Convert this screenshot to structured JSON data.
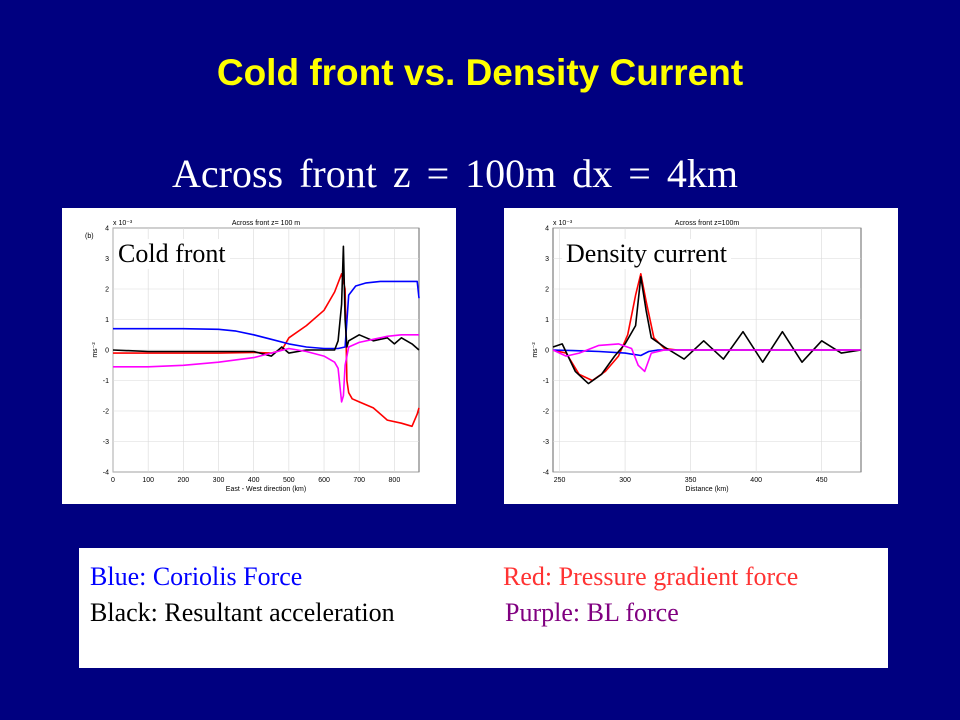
{
  "slide": {
    "title": "Cold front vs. Density Current",
    "subtitle": "Across front z = 100m    dx = 4km"
  },
  "legend": {
    "blue": "Blue: Coriolis Force",
    "red": "Red: Pressure gradient force",
    "black": "Black: Resultant acceleration",
    "purple": "Purple: BL force"
  },
  "colors": {
    "background": "#000080",
    "title": "#ffff00",
    "coriolis": "#0000ff",
    "pressure": "#ff0000",
    "resultant": "#000000",
    "bl": "#ff00ff",
    "legend_red": "#ff3333",
    "legend_purple": "#800080"
  },
  "chart_data": [
    {
      "type": "line",
      "overlay_label": "Cold front",
      "panel_tag": "(b)",
      "title": "Across front z= 100 m",
      "xlabel": "East - West direction (km)",
      "ylabel": "ms⁻²",
      "y_scale_label": "x 10⁻³",
      "xlim": [
        0,
        870
      ],
      "ylim": [
        -4,
        4
      ],
      "xticks": [
        0,
        100,
        200,
        300,
        400,
        500,
        600,
        700,
        800
      ],
      "yticks": [
        -4,
        -3,
        -2,
        -1,
        0,
        1,
        2,
        3,
        4
      ],
      "grid": true,
      "series": [
        {
          "color": "#ff0000",
          "x": [
            0,
            100,
            200,
            300,
            400,
            450,
            480,
            500,
            550,
            600,
            630,
            650,
            660,
            665,
            670,
            680,
            700,
            740,
            780,
            820,
            850,
            865,
            870
          ],
          "y": [
            -0.1,
            -0.1,
            -0.1,
            -0.1,
            -0.08,
            -0.1,
            0.0,
            0.4,
            0.8,
            1.3,
            1.9,
            2.5,
            2.0,
            -1.0,
            -1.4,
            -1.6,
            -1.7,
            -1.9,
            -2.3,
            -2.4,
            -2.5,
            -2.1,
            -1.9
          ]
        },
        {
          "color": "#0000ff",
          "x": [
            0,
            100,
            200,
            300,
            350,
            400,
            450,
            500,
            550,
            600,
            640,
            660,
            670,
            690,
            720,
            760,
            800,
            840,
            865,
            870
          ],
          "y": [
            0.7,
            0.7,
            0.7,
            0.68,
            0.62,
            0.5,
            0.35,
            0.2,
            0.1,
            0.05,
            0.05,
            0.1,
            1.8,
            2.1,
            2.2,
            2.25,
            2.25,
            2.25,
            2.25,
            1.7
          ]
        },
        {
          "color": "#000000",
          "x": [
            0,
            100,
            200,
            300,
            400,
            450,
            480,
            500,
            550,
            600,
            630,
            640,
            650,
            655,
            660,
            665,
            670,
            700,
            740,
            780,
            800,
            820,
            850,
            870
          ],
          "y": [
            0.0,
            -0.05,
            -0.05,
            -0.05,
            -0.05,
            -0.2,
            0.1,
            -0.1,
            0.0,
            0.0,
            0.0,
            0.3,
            1.5,
            3.4,
            1.0,
            0.1,
            0.3,
            0.5,
            0.3,
            0.4,
            0.2,
            0.4,
            0.2,
            0.0
          ]
        },
        {
          "color": "#ff00ff",
          "x": [
            0,
            100,
            200,
            300,
            400,
            450,
            500,
            550,
            600,
            630,
            640,
            650,
            655,
            660,
            670,
            700,
            740,
            780,
            820,
            870
          ],
          "y": [
            -0.55,
            -0.55,
            -0.5,
            -0.4,
            -0.25,
            -0.1,
            0.05,
            -0.05,
            -0.2,
            -0.4,
            -0.6,
            -1.7,
            -1.5,
            -0.5,
            0.1,
            0.25,
            0.35,
            0.45,
            0.5,
            0.5
          ]
        }
      ]
    },
    {
      "type": "line",
      "overlay_label": "Density current",
      "title": "Across front z=100m",
      "xlabel": "Distance (km)",
      "ylabel": "ms⁻²",
      "y_scale_label": "x 10⁻³",
      "xlim": [
        245,
        480
      ],
      "ylim": [
        -4,
        4
      ],
      "xticks": [
        250,
        300,
        350,
        400,
        450
      ],
      "yticks": [
        -4,
        -3,
        -2,
        -1,
        0,
        1,
        2,
        3,
        4
      ],
      "grid": true,
      "series": [
        {
          "color": "#ff0000",
          "x": [
            245,
            255,
            265,
            275,
            285,
            295,
            302,
            308,
            312,
            316,
            322,
            330,
            340,
            350,
            400,
            480
          ],
          "y": [
            0.0,
            -0.1,
            -0.8,
            -1.0,
            -0.7,
            -0.2,
            0.5,
            1.8,
            2.5,
            1.6,
            0.4,
            0.05,
            0.0,
            0.0,
            0.0,
            0.0
          ]
        },
        {
          "color": "#0000ff",
          "x": [
            245,
            260,
            280,
            300,
            312,
            318,
            325,
            340,
            400,
            480
          ],
          "y": [
            0.0,
            -0.02,
            -0.05,
            -0.1,
            -0.18,
            -0.05,
            0.0,
            0.0,
            0.0,
            0.0
          ]
        },
        {
          "color": "#000000",
          "x": [
            245,
            252,
            262,
            272,
            282,
            292,
            300,
            308,
            312,
            316,
            320,
            330,
            345,
            360,
            375,
            390,
            405,
            420,
            435,
            450,
            465,
            480
          ],
          "y": [
            0.1,
            0.2,
            -0.7,
            -1.1,
            -0.8,
            -0.2,
            0.2,
            0.8,
            2.4,
            1.3,
            0.4,
            0.1,
            -0.3,
            0.3,
            -0.3,
            0.6,
            -0.4,
            0.6,
            -0.4,
            0.3,
            -0.1,
            0.0
          ]
        },
        {
          "color": "#ff00ff",
          "x": [
            245,
            255,
            265,
            280,
            295,
            305,
            310,
            315,
            320,
            330,
            360,
            400,
            480
          ],
          "y": [
            0.0,
            -0.2,
            -0.1,
            0.15,
            0.2,
            0.05,
            -0.5,
            -0.7,
            -0.1,
            0.0,
            0.0,
            0.0,
            0.0
          ]
        }
      ]
    }
  ]
}
